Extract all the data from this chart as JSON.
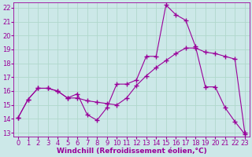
{
  "line1_x": [
    0,
    1,
    2,
    3,
    4,
    5,
    6,
    7,
    8,
    9,
    10,
    11,
    12,
    13,
    14,
    15,
    16,
    17,
    18,
    19,
    20,
    21,
    22,
    23
  ],
  "line1_y": [
    14.1,
    15.4,
    16.2,
    16.2,
    16.0,
    15.5,
    15.8,
    14.3,
    13.9,
    14.8,
    16.5,
    16.5,
    16.8,
    18.5,
    18.5,
    22.2,
    21.5,
    21.1,
    19.2,
    16.3,
    16.3,
    14.8,
    13.8,
    12.9
  ],
  "line2_x": [
    0,
    1,
    2,
    3,
    4,
    5,
    6,
    7,
    8,
    9,
    10,
    11,
    12,
    13,
    14,
    15,
    16,
    17,
    18,
    19,
    20,
    21,
    22,
    23
  ],
  "line2_y": [
    14.1,
    15.4,
    16.2,
    16.2,
    16.0,
    15.5,
    15.5,
    15.3,
    15.2,
    15.1,
    15.0,
    15.5,
    16.4,
    17.1,
    17.7,
    18.2,
    18.7,
    19.1,
    19.1,
    18.8,
    18.7,
    18.5,
    18.3,
    13.0
  ],
  "line_color1": "#990099",
  "line_color2": "#990099",
  "bg_color": "#cce8e8",
  "grid_color": "#b0d8cc",
  "xlabel": "Windchill (Refroidissement éolien,°C)",
  "xlim_min": -0.5,
  "xlim_max": 23.5,
  "ylim_min": 12.7,
  "ylim_max": 22.4,
  "yticks": [
    13,
    14,
    15,
    16,
    17,
    18,
    19,
    20,
    21,
    22
  ],
  "xticks": [
    0,
    1,
    2,
    3,
    4,
    5,
    6,
    7,
    8,
    9,
    10,
    11,
    12,
    13,
    14,
    15,
    16,
    17,
    18,
    19,
    20,
    21,
    22,
    23
  ],
  "marker": "+",
  "linewidth": 0.8,
  "markersize": 4,
  "xlabel_fontsize": 6.5,
  "tick_fontsize": 6.0
}
